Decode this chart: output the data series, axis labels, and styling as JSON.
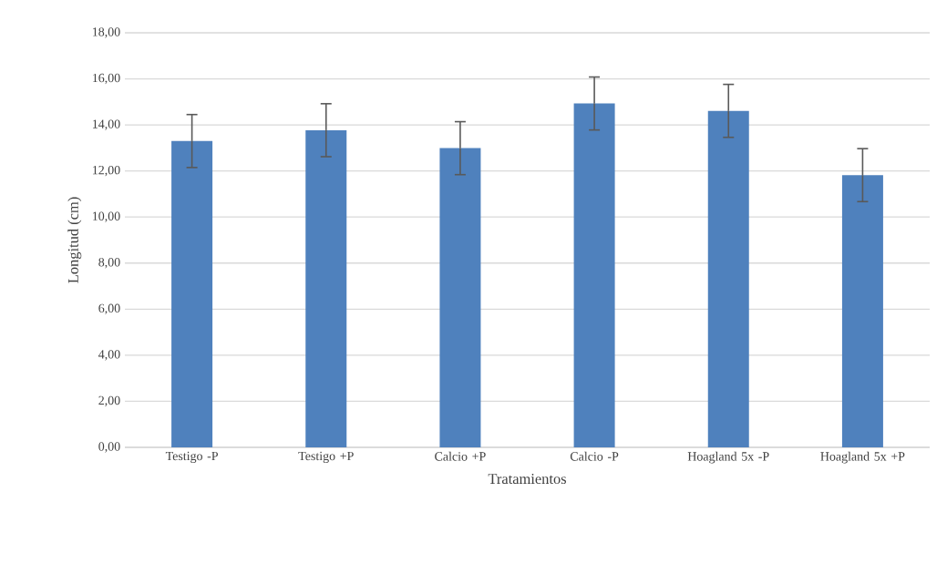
{
  "chart_data": {
    "type": "bar",
    "xlabel": "Tratamientos",
    "ylabel": "Longitud (cm)",
    "categories": [
      "Testigo -P",
      "Testigo +P",
      "Calcio +P",
      "Calcio -P",
      "Hoagland 5x -P",
      "Hoagland 5x +P"
    ],
    "values": [
      13.3,
      13.77,
      12.99,
      14.93,
      14.61,
      11.82
    ],
    "errors": [
      1.15,
      1.15,
      1.15,
      1.15,
      1.15,
      1.15
    ],
    "color": "#4f81bd",
    "ylim": [
      0,
      18
    ],
    "yticks": [
      {
        "value": 0,
        "label": "0,00"
      },
      {
        "value": 2,
        "label": "2,00"
      },
      {
        "value": 4,
        "label": "4,00"
      },
      {
        "value": 6,
        "label": "6,00"
      },
      {
        "value": 8,
        "label": "8,00"
      },
      {
        "value": 10,
        "label": "10,00"
      },
      {
        "value": 12,
        "label": "12,00"
      },
      {
        "value": 14,
        "label": "14,00"
      },
      {
        "value": 16,
        "label": "16,00"
      },
      {
        "value": 18,
        "label": "18,00"
      }
    ],
    "grid": "y"
  }
}
